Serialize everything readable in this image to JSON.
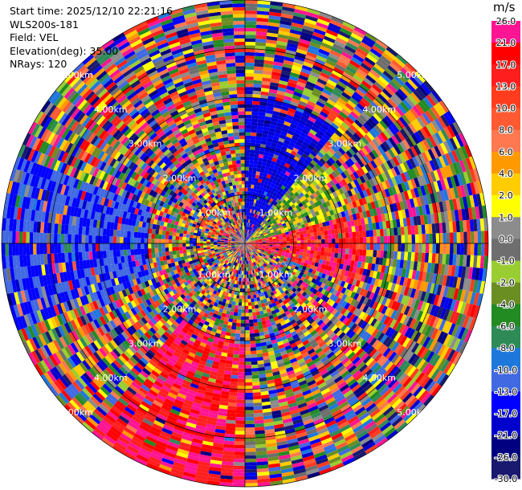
{
  "header": {
    "start_time": "Start time: 2025/12/10 22:21:16",
    "instrument": "WLS200s-181",
    "field": "Field: VEL",
    "elevation": "Elevation(deg): 35.00",
    "nrays": "NRays: 120"
  },
  "colorbar": {
    "unit": "m/s",
    "bands": [
      {
        "label": "26.0",
        "color": "#ff1493"
      },
      {
        "label": "21.0",
        "color": "#ff0000"
      },
      {
        "label": "17.0",
        "color": "#ff1e1e"
      },
      {
        "label": "13.0",
        "color": "#ff3c1e"
      },
      {
        "label": "10.0",
        "color": "#ff5a32"
      },
      {
        "label": "8.0",
        "color": "#ff7850"
      },
      {
        "label": "6.0",
        "color": "#ff9900"
      },
      {
        "label": "4.0",
        "color": "#ffcc00"
      },
      {
        "label": "2.0",
        "color": "#ffff00"
      },
      {
        "label": "1.0",
        "color": "#8c8c8c"
      },
      {
        "label": "0.0",
        "color": "#6e6e6e"
      },
      {
        "label": "-1.0",
        "color": "#9acd32"
      },
      {
        "label": "-2.0",
        "color": "#6b8e23"
      },
      {
        "label": "-4.0",
        "color": "#228b22"
      },
      {
        "label": "-6.0",
        "color": "#2e8b57"
      },
      {
        "label": "-8.0",
        "color": "#1e78dc"
      },
      {
        "label": "-10.0",
        "color": "#4169e1"
      },
      {
        "label": "-13.0",
        "color": "#0000ff"
      },
      {
        "label": "-17.0",
        "color": "#0000cd"
      },
      {
        "label": "-21.0",
        "color": "#000080"
      },
      {
        "label": "-26.0",
        "color": "#191970"
      },
      {
        "label": "-30.0",
        "color": ""
      }
    ]
  },
  "chart_data": {
    "type": "heatmap",
    "subtype": "polar-ppi",
    "field": "VEL",
    "units": "m/s",
    "elevation_deg": 35.0,
    "nrays": 120,
    "range_rings_km": [
      1,
      2,
      3,
      4,
      5
    ],
    "ring_labels": [
      "1.00km",
      "2.00km",
      "3.00km",
      "4.00km",
      "5.00km"
    ],
    "color_levels": [
      -30,
      -26,
      -21,
      -17,
      -13,
      -10,
      -8,
      -6,
      -4,
      -2,
      -1,
      0,
      1,
      2,
      4,
      6,
      8,
      10,
      13,
      17,
      21,
      26
    ],
    "dominant_patterns": [
      {
        "azimuth_range_deg": [
          0,
          40
        ],
        "range_km": [
          0,
          3
        ],
        "velocity_ms": [
          -21,
          -13
        ]
      },
      {
        "azimuth_range_deg": [
          40,
          75
        ],
        "range_km": [
          0,
          2.2
        ],
        "velocity_ms": [
          -6,
          4
        ]
      },
      {
        "azimuth_range_deg": [
          75,
          110
        ],
        "range_km": [
          0,
          2.5
        ],
        "velocity_ms": [
          8,
          26
        ]
      },
      {
        "azimuth_range_deg": [
          180,
          220
        ],
        "range_km": [
          2,
          5
        ],
        "velocity_ms": [
          13,
          26
        ]
      },
      {
        "azimuth_range_deg": [
          250,
          290
        ],
        "range_km": [
          2,
          5
        ],
        "velocity_ms": [
          -17,
          -10
        ]
      }
    ]
  }
}
